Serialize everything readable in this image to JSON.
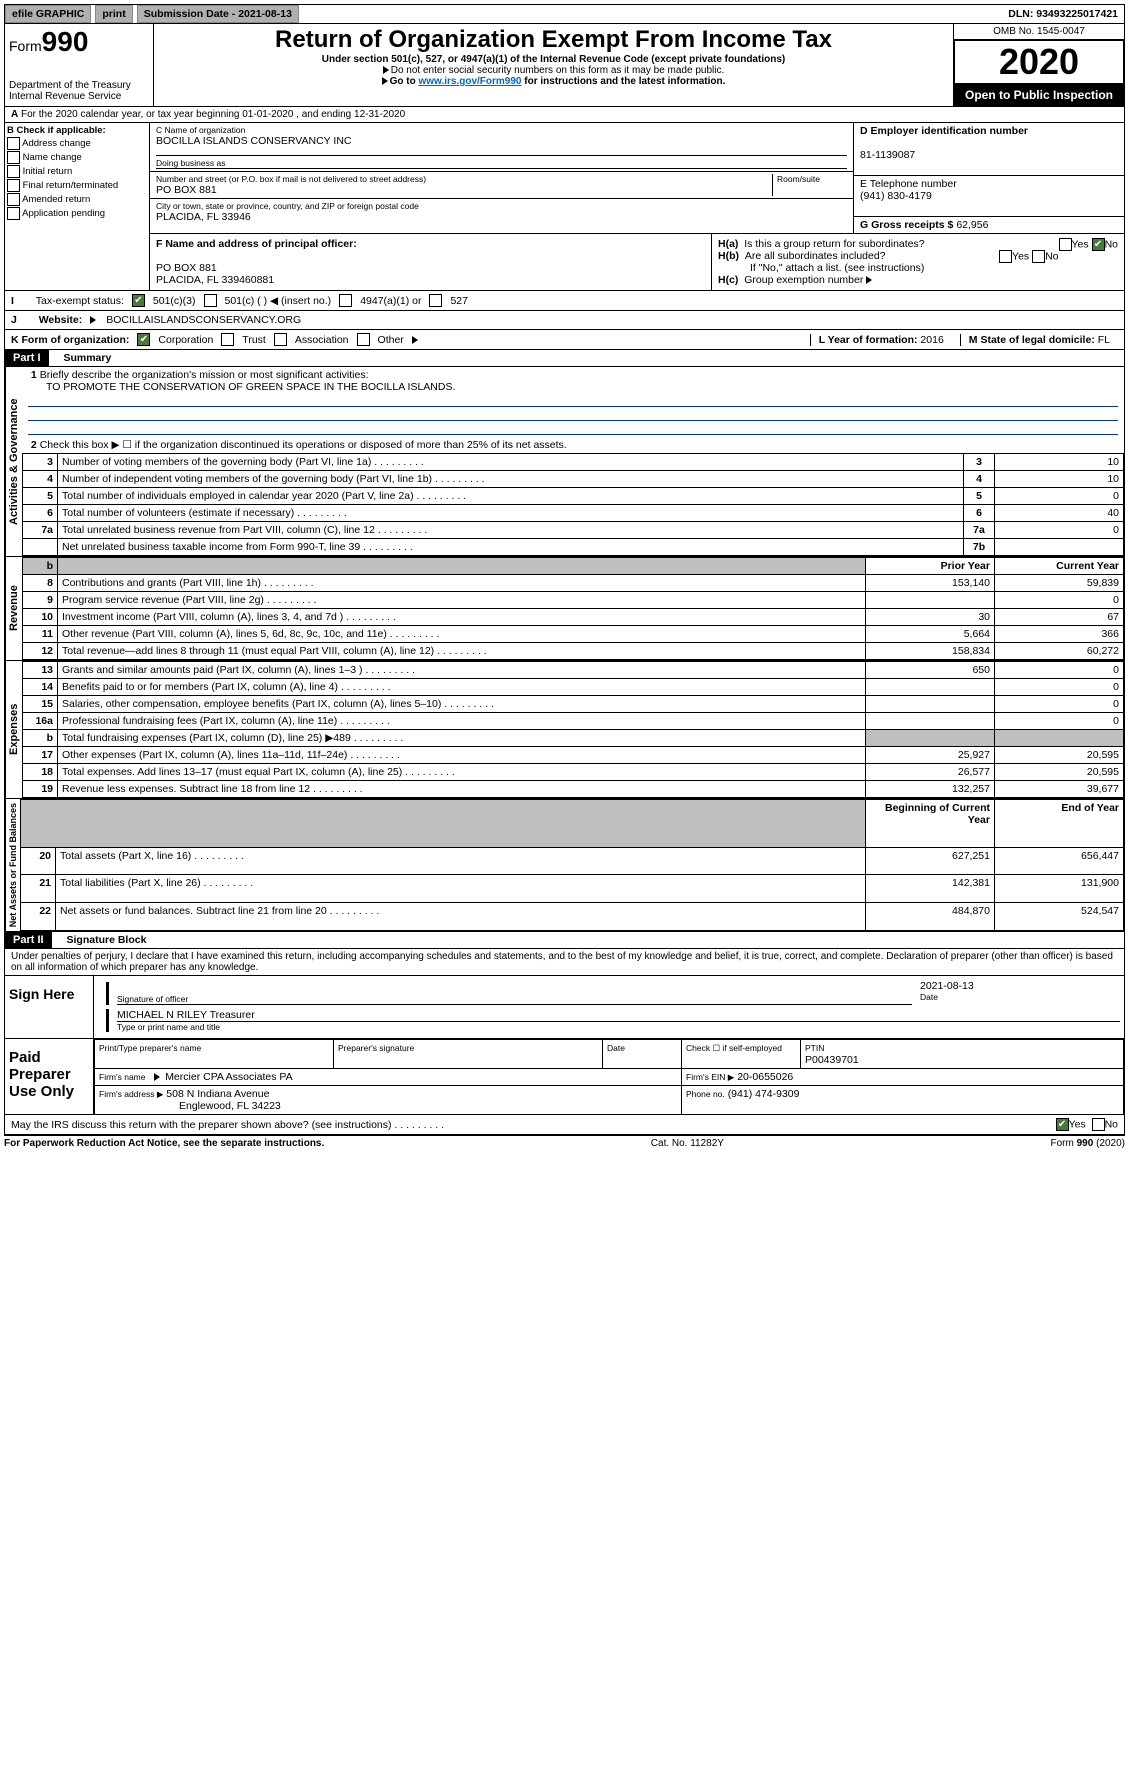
{
  "topbar": {
    "efile": "efile GRAPHIC",
    "print": "print",
    "sub_label": "Submission Date - 2021-08-13",
    "dln": "DLN: 93493225017421"
  },
  "header": {
    "form_word": "Form",
    "form_num": "990",
    "dept": "Department of the Treasury\nInternal Revenue Service",
    "title": "Return of Organization Exempt From Income Tax",
    "sub1": "Under section 501(c), 527, or 4947(a)(1) of the Internal Revenue Code (except private foundations)",
    "sub2": "Do not enter social security numbers on this form as it may be made public.",
    "sub3_pre": "Go to ",
    "sub3_link": "www.irs.gov/Form990",
    "sub3_post": " for instructions and the latest information.",
    "omb": "OMB No. 1545-0047",
    "year": "2020",
    "open": "Open to Public Inspection"
  },
  "line_a": "For the 2020 calendar year, or tax year beginning 01-01-2020    , and ending 12-31-2020",
  "box_b": {
    "hdr": "B Check if applicable:",
    "opts": [
      "Address change",
      "Name change",
      "Initial return",
      "Final return/terminated",
      "Amended return",
      "Application pending"
    ]
  },
  "box_c": {
    "label": "C Name of organization",
    "name": "BOCILLA ISLANDS CONSERVANCY INC",
    "dba_label": "Doing business as",
    "addr_label": "Number and street (or P.O. box if mail is not delivered to street address)",
    "room": "Room/suite",
    "addr": "PO BOX 881",
    "city_label": "City or town, state or province, country, and ZIP or foreign postal code",
    "city": "PLACIDA, FL  33946"
  },
  "box_d": {
    "label": "D Employer identification number",
    "val": "81-1139087"
  },
  "box_e": {
    "label": "E Telephone number",
    "val": "(941) 830-4179"
  },
  "box_g": {
    "label": "G Gross receipts $",
    "val": "62,956"
  },
  "box_f": {
    "label": "F Name and address of principal officer:",
    "l1": "PO BOX 881",
    "l2": "PLACIDA, FL  339460881"
  },
  "box_h": {
    "a": "Is this a group return for subordinates?",
    "b": "Are all subordinates included?",
    "note": "If \"No,\" attach a list. (see instructions)",
    "c": "Group exemption number"
  },
  "tax_status": {
    "label": "Tax-exempt status:",
    "o1": "501(c)(3)",
    "o2": "501(c) (  ) ◀ (insert no.)",
    "o3": "4947(a)(1) or",
    "o4": "527"
  },
  "website": {
    "label": "Website:",
    "val": "BOCILLAISLANDSCONSERVANCY.ORG"
  },
  "box_k": {
    "label": "K Form of organization:",
    "opts": [
      "Corporation",
      "Trust",
      "Association",
      "Other"
    ]
  },
  "box_l": {
    "label": "L Year of formation:",
    "val": "2016"
  },
  "box_m": {
    "label": "M State of legal domicile:",
    "val": "FL"
  },
  "part1": {
    "hdr": "Part I",
    "title": "Summary",
    "l1_label": "Briefly describe the organization's mission or most significant activities:",
    "l1_text": "TO PROMOTE THE CONSERVATION OF GREEN SPACE IN THE BOCILLA ISLANDS.",
    "l2": "Check this box ▶ ☐  if the organization discontinued its operations or disposed of more than 25% of its net assets.",
    "side": {
      "gov": "Activities & Governance",
      "rev": "Revenue",
      "exp": "Expenses",
      "net": "Net Assets or Fund Balances"
    },
    "cols": {
      "prior": "Prior Year",
      "curr": "Current Year",
      "beg": "Beginning of Current Year",
      "end": "End of Year"
    },
    "rows_gov": [
      {
        "n": "3",
        "t": "Number of voting members of the governing body (Part VI, line 1a)",
        "b": "3",
        "v": "10"
      },
      {
        "n": "4",
        "t": "Number of independent voting members of the governing body (Part VI, line 1b)",
        "b": "4",
        "v": "10"
      },
      {
        "n": "5",
        "t": "Total number of individuals employed in calendar year 2020 (Part V, line 2a)",
        "b": "5",
        "v": "0"
      },
      {
        "n": "6",
        "t": "Total number of volunteers (estimate if necessary)",
        "b": "6",
        "v": "40"
      },
      {
        "n": "7a",
        "t": "Total unrelated business revenue from Part VIII, column (C), line 12",
        "b": "7a",
        "v": "0"
      },
      {
        "n": "",
        "t": "Net unrelated business taxable income from Form 990-T, line 39",
        "b": "7b",
        "v": ""
      }
    ],
    "row_b": {
      "n": "b",
      "t": "",
      "b": "",
      "v": ""
    },
    "rows_rev": [
      {
        "n": "8",
        "t": "Contributions and grants (Part VIII, line 1h)",
        "p": "153,140",
        "c": "59,839"
      },
      {
        "n": "9",
        "t": "Program service revenue (Part VIII, line 2g)",
        "p": "",
        "c": "0"
      },
      {
        "n": "10",
        "t": "Investment income (Part VIII, column (A), lines 3, 4, and 7d )",
        "p": "30",
        "c": "67"
      },
      {
        "n": "11",
        "t": "Other revenue (Part VIII, column (A), lines 5, 6d, 8c, 9c, 10c, and 11e)",
        "p": "5,664",
        "c": "366"
      },
      {
        "n": "12",
        "t": "Total revenue—add lines 8 through 11 (must equal Part VIII, column (A), line 12)",
        "p": "158,834",
        "c": "60,272"
      }
    ],
    "rows_exp": [
      {
        "n": "13",
        "t": "Grants and similar amounts paid (Part IX, column (A), lines 1–3 )",
        "p": "650",
        "c": "0"
      },
      {
        "n": "14",
        "t": "Benefits paid to or for members (Part IX, column (A), line 4)",
        "p": "",
        "c": "0"
      },
      {
        "n": "15",
        "t": "Salaries, other compensation, employee benefits (Part IX, column (A), lines 5–10)",
        "p": "",
        "c": "0"
      },
      {
        "n": "16a",
        "t": "Professional fundraising fees (Part IX, column (A), line 11e)",
        "p": "",
        "c": "0"
      },
      {
        "n": "b",
        "t": "Total fundraising expenses (Part IX, column (D), line 25) ▶489",
        "p": "SHADE",
        "c": "SHADE"
      },
      {
        "n": "17",
        "t": "Other expenses (Part IX, column (A), lines 11a–11d, 11f–24e)",
        "p": "25,927",
        "c": "20,595"
      },
      {
        "n": "18",
        "t": "Total expenses. Add lines 13–17 (must equal Part IX, column (A), line 25)",
        "p": "26,577",
        "c": "20,595"
      },
      {
        "n": "19",
        "t": "Revenue less expenses. Subtract line 18 from line 12",
        "p": "132,257",
        "c": "39,677"
      }
    ],
    "rows_net": [
      {
        "n": "20",
        "t": "Total assets (Part X, line 16)",
        "p": "627,251",
        "c": "656,447"
      },
      {
        "n": "21",
        "t": "Total liabilities (Part X, line 26)",
        "p": "142,381",
        "c": "131,900"
      },
      {
        "n": "22",
        "t": "Net assets or fund balances. Subtract line 21 from line 20",
        "p": "484,870",
        "c": "524,547"
      }
    ]
  },
  "part2": {
    "hdr": "Part II",
    "title": "Signature Block",
    "decl": "Under penalties of perjury, I declare that I have examined this return, including accompanying schedules and statements, and to the best of my knowledge and belief, it is true, correct, and complete. Declaration of preparer (other than officer) is based on all information of which preparer has any knowledge.",
    "sign_here": "Sign Here",
    "sig_officer": "Signature of officer",
    "sig_date": "2021-08-13",
    "date_lbl": "Date",
    "name_title": "MICHAEL N RILEY  Treasurer",
    "name_title_lbl": "Type or print name and title",
    "paid": "Paid Preparer Use Only",
    "pt_name_lbl": "Print/Type preparer's name",
    "pt_sig_lbl": "Preparer's signature",
    "pt_date_lbl": "Date",
    "pt_check": "Check ☐ if self-employed",
    "ptin_lbl": "PTIN",
    "ptin": "P00439701",
    "firm_name_lbl": "Firm's name",
    "firm_name": "Mercier CPA Associates PA",
    "firm_ein_lbl": "Firm's EIN ▶",
    "firm_ein": "20-0655026",
    "firm_addr_lbl": "Firm's address ▶",
    "firm_addr1": "508 N Indiana Avenue",
    "firm_addr2": "Englewood, FL  34223",
    "phone_lbl": "Phone no.",
    "phone": "(941) 474-9309",
    "discuss": "May the IRS discuss this return with the preparer shown above? (see instructions)"
  },
  "footer": {
    "l": "For Paperwork Reduction Act Notice, see the separate instructions.",
    "c": "Cat. No. 11282Y",
    "r": "Form 990 (2020)"
  }
}
